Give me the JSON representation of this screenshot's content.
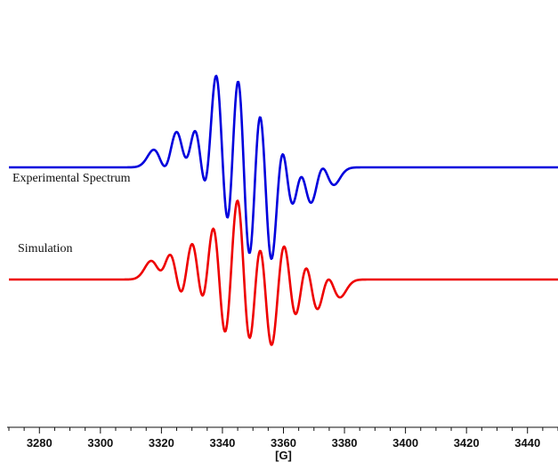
{
  "chart_data": {
    "type": "line",
    "title": "",
    "xlabel": "[G]",
    "ylabel": "",
    "xlim": [
      3270,
      3450
    ],
    "ylim": [
      -1.25,
      1.25
    ],
    "x_ticks": [
      3280,
      3300,
      3320,
      3340,
      3360,
      3380,
      3400,
      3420,
      3440
    ],
    "grid": false,
    "series": [
      {
        "name": "Experimental Spectrum",
        "color": "#0000dd",
        "offset": 0.35,
        "amplitude": 1.0,
        "line_width": 0.9,
        "peaks": [
          {
            "x": 3320,
            "h": 0.12
          },
          {
            "x": 3327,
            "h": 0.3
          },
          {
            "x": 3333,
            "h": 0.5
          },
          {
            "x": 3340,
            "h": 0.92
          },
          {
            "x": 3347,
            "h": 1.1
          },
          {
            "x": 3354,
            "h": 0.92
          },
          {
            "x": 3361,
            "h": 0.5
          },
          {
            "x": 3367,
            "h": 0.3
          },
          {
            "x": 3374,
            "h": 0.12
          }
        ]
      },
      {
        "name": "Simulation",
        "color": "#ee0000",
        "offset": -0.35,
        "amplitude": 1.0,
        "line_width": 0.55,
        "peaks": [
          {
            "x": 3319,
            "h": 0.2
          },
          {
            "x": 3325,
            "h": 0.45
          },
          {
            "x": 3332,
            "h": 0.65
          },
          {
            "x": 3339,
            "h": 0.95
          },
          {
            "x": 3347,
            "h": 1.2
          },
          {
            "x": 3354,
            "h": 0.95
          },
          {
            "x": 3362,
            "h": 0.65
          },
          {
            "x": 3369,
            "h": 0.45
          },
          {
            "x": 3376,
            "h": 0.2
          }
        ]
      }
    ]
  }
}
